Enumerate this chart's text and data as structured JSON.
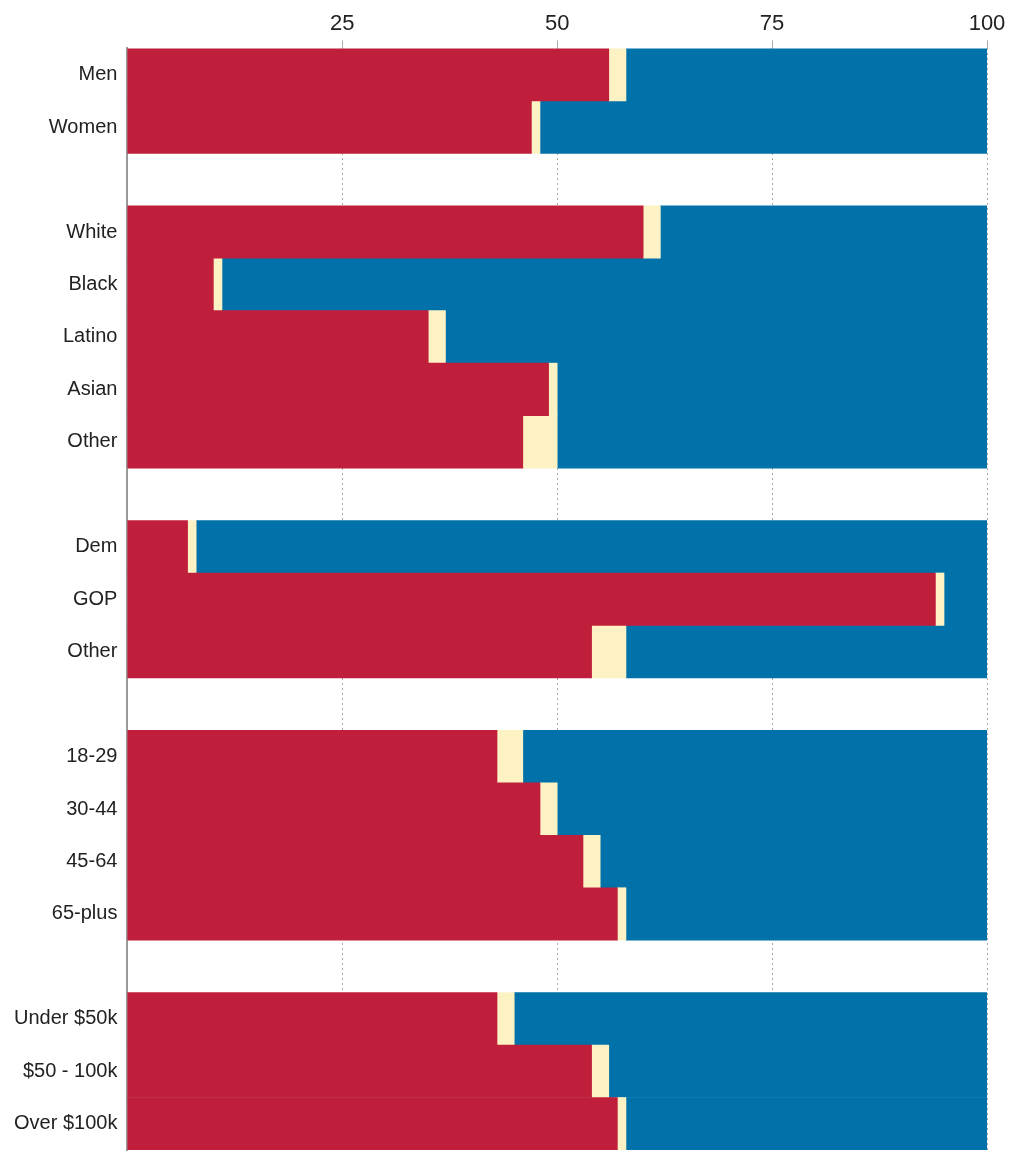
{
  "chart_data": {
    "type": "bar",
    "orientation": "horizontal",
    "stacked": true,
    "categories": [
      "Men",
      "Women",
      null,
      "White",
      "Black",
      "Latino",
      "Asian",
      "Other",
      null,
      "Dem",
      "GOP",
      "Other",
      null,
      "18-29",
      "30-44",
      "45-64",
      "65-plus",
      null,
      "Under $50k",
      "$50 - 100k",
      "Over $100k"
    ],
    "series": [
      {
        "color": "#c01f3b",
        "values": [
          56,
          47,
          null,
          60,
          10,
          35,
          49,
          46,
          null,
          7,
          94,
          54,
          null,
          43,
          48,
          53,
          57,
          null,
          43,
          54,
          57
        ]
      },
      {
        "color": "#fdf2c4",
        "values": [
          2,
          1,
          null,
          2,
          1,
          2,
          1,
          4,
          null,
          1,
          1,
          4,
          null,
          3,
          2,
          2,
          1,
          null,
          2,
          2,
          1
        ]
      },
      {
        "color": "#0071a9",
        "values": [
          42,
          52,
          null,
          38,
          89,
          63,
          50,
          50,
          null,
          92,
          5,
          42,
          null,
          54,
          50,
          45,
          42,
          null,
          55,
          44,
          42
        ]
      }
    ],
    "xlim": [
      0,
      100
    ],
    "xticks": [
      25,
      50,
      75,
      100
    ],
    "grid": "x",
    "legend": false
  }
}
